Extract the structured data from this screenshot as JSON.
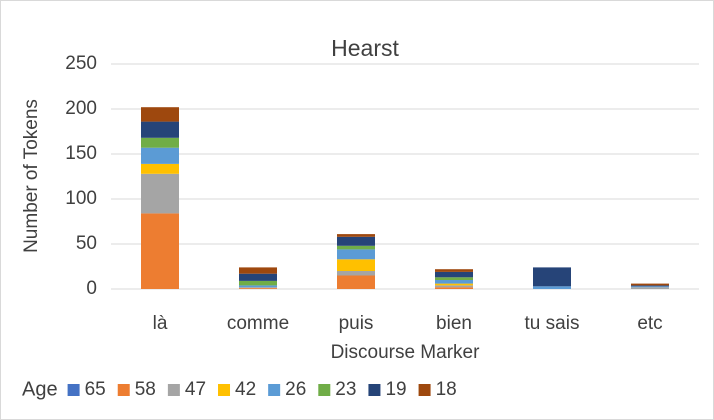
{
  "chart_data": {
    "type": "stacked_bar",
    "title": "Hearst",
    "x_label": "Discourse Marker",
    "y_label": "Number of Tokens",
    "legend_title": "Age",
    "categories": [
      "là",
      "comme",
      "puis",
      "bien",
      "tu sais",
      "etc"
    ],
    "series": [
      {
        "name": "65",
        "color": "#4472c4",
        "values": [
          0,
          0,
          0,
          0,
          0,
          0
        ]
      },
      {
        "name": "58",
        "color": "#ed7d31",
        "values": [
          84,
          1,
          15,
          2,
          0,
          0
        ]
      },
      {
        "name": "47",
        "color": "#a5a5a5",
        "values": [
          44,
          1,
          5,
          2,
          0,
          2
        ]
      },
      {
        "name": "42",
        "color": "#ffc000",
        "values": [
          11,
          0,
          13,
          2,
          0,
          0
        ]
      },
      {
        "name": "26",
        "color": "#5b9bd5",
        "values": [
          18,
          2,
          11,
          4,
          3,
          1
        ]
      },
      {
        "name": "23",
        "color": "#70ad47",
        "values": [
          11,
          5,
          4,
          3,
          0,
          0
        ]
      },
      {
        "name": "19",
        "color": "#264478",
        "values": [
          18,
          8,
          10,
          6,
          21,
          1
        ]
      },
      {
        "name": "18",
        "color": "#9e480e",
        "values": [
          16,
          7,
          3,
          3,
          0,
          2
        ]
      }
    ],
    "ylim": [
      0,
      250
    ],
    "yticks": [
      0,
      50,
      100,
      150,
      200,
      250
    ],
    "grid": true,
    "legend": "bottom"
  }
}
